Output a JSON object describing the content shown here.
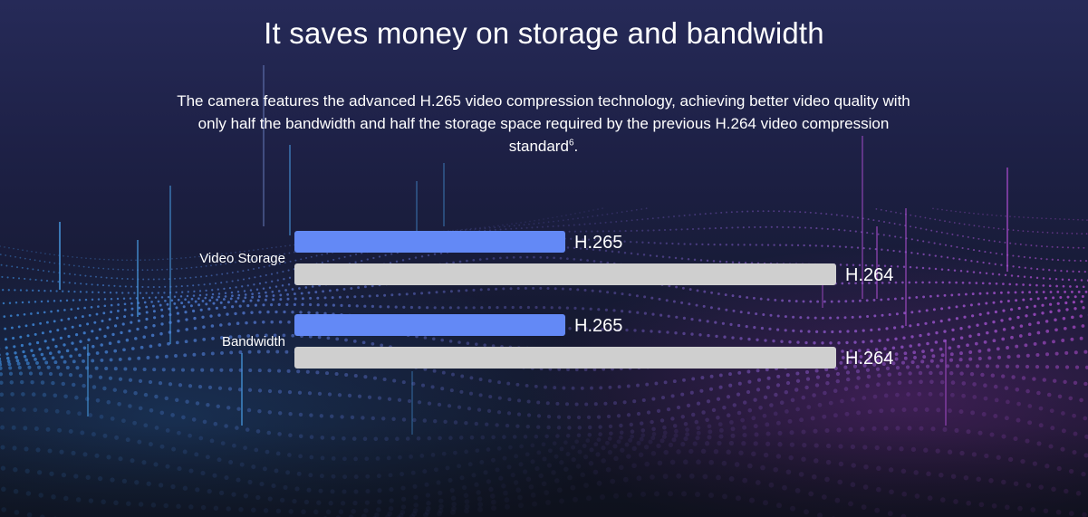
{
  "header": {
    "title": "It saves money on storage and bandwidth",
    "description": "The camera features the advanced H.265 video compression technology, achieving better video quality with only half the bandwidth and half the storage space required by the previous H.264 video compression standard",
    "footnote_marker": "6",
    "description_end": "."
  },
  "colors": {
    "h265": "#6389f6",
    "h264": "#cfcfcf",
    "background_top": "#262a58",
    "background_bottom": "#10131f",
    "dots_left": "#3d8ee0",
    "dots_right": "#b04cd0"
  },
  "chart_data": {
    "type": "bar",
    "orientation": "horizontal",
    "categories": [
      "Video Storage",
      "Bandwidth"
    ],
    "series": [
      {
        "name": "H.265",
        "values": [
          0.5,
          0.5
        ]
      },
      {
        "name": "H.264",
        "values": [
          1.0,
          1.0
        ]
      }
    ],
    "xlim": [
      0,
      1
    ],
    "grid": false,
    "legend": "none"
  }
}
